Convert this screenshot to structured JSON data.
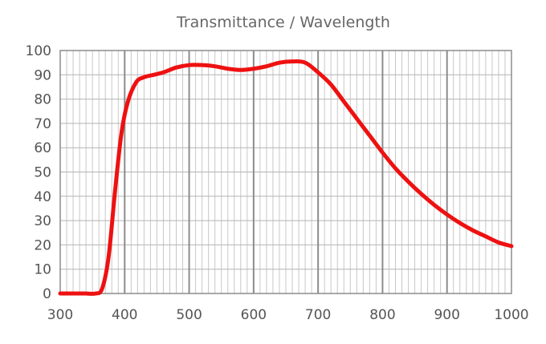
{
  "chart_data": {
    "type": "line",
    "title": "Transmittance / Wavelength",
    "xlabel": "",
    "ylabel": "",
    "xlim": [
      300,
      1000
    ],
    "ylim": [
      0,
      100
    ],
    "x_ticks": [
      "300",
      "400",
      "500",
      "600",
      "700",
      "800",
      "900",
      "1000"
    ],
    "y_ticks": [
      "0",
      "10",
      "20",
      "30",
      "40",
      "50",
      "60",
      "70",
      "80",
      "90",
      "100"
    ],
    "grid": true,
    "legend": "none",
    "series": [
      {
        "color": "#ee1111",
        "x": [
          300,
          310,
          320,
          330,
          340,
          355,
          365,
          375,
          385,
          395,
          405,
          418,
          430,
          445,
          460,
          480,
          500,
          520,
          540,
          560,
          580,
          600,
          620,
          640,
          660,
          680,
          700,
          720,
          740,
          760,
          780,
          800,
          820,
          840,
          860,
          880,
          900,
          920,
          940,
          960,
          980,
          1000
        ],
        "y": [
          0,
          0,
          0,
          0,
          0,
          0,
          2,
          15,
          42,
          66,
          79,
          87,
          89,
          90,
          91,
          93,
          94,
          94,
          93.5,
          92.5,
          92,
          92.5,
          93.5,
          95,
          95.5,
          95,
          91,
          86,
          79,
          72,
          65,
          58,
          51.5,
          46,
          41,
          36.5,
          32.5,
          29,
          26,
          23.5,
          21,
          19.5
        ]
      }
    ]
  }
}
